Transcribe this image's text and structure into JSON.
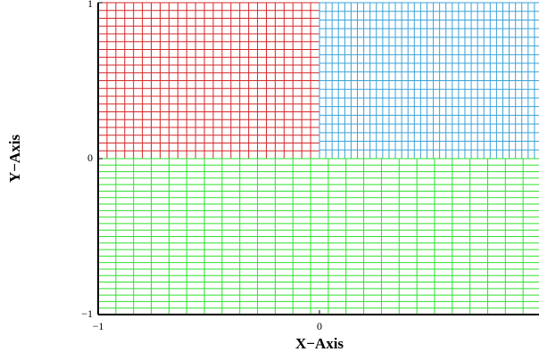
{
  "chart_data": {
    "type": "mesh",
    "xlabel": "X−Axis",
    "ylabel": "Y−Axis",
    "xlim": [
      -1,
      1
    ],
    "ylim": [
      -1,
      1
    ],
    "xticks": [
      {
        "value": -1,
        "label": "−1"
      },
      0
    ],
    "yticks": [
      {
        "value": -1,
        "label": "−1"
      },
      0,
      1
    ],
    "regions": [
      {
        "color": "#d62728",
        "x": [
          -1,
          0
        ],
        "y": [
          0,
          1
        ],
        "nx": 25,
        "ny": 20
      },
      {
        "color": "#3ba3d8",
        "x": [
          0,
          1
        ],
        "y": [
          0,
          1
        ],
        "nx": 35,
        "ny": 18
      },
      {
        "color": "#2ee02e",
        "x": [
          -1,
          1
        ],
        "y": [
          -1,
          0
        ],
        "nx": 25,
        "ny": 24
      }
    ]
  }
}
